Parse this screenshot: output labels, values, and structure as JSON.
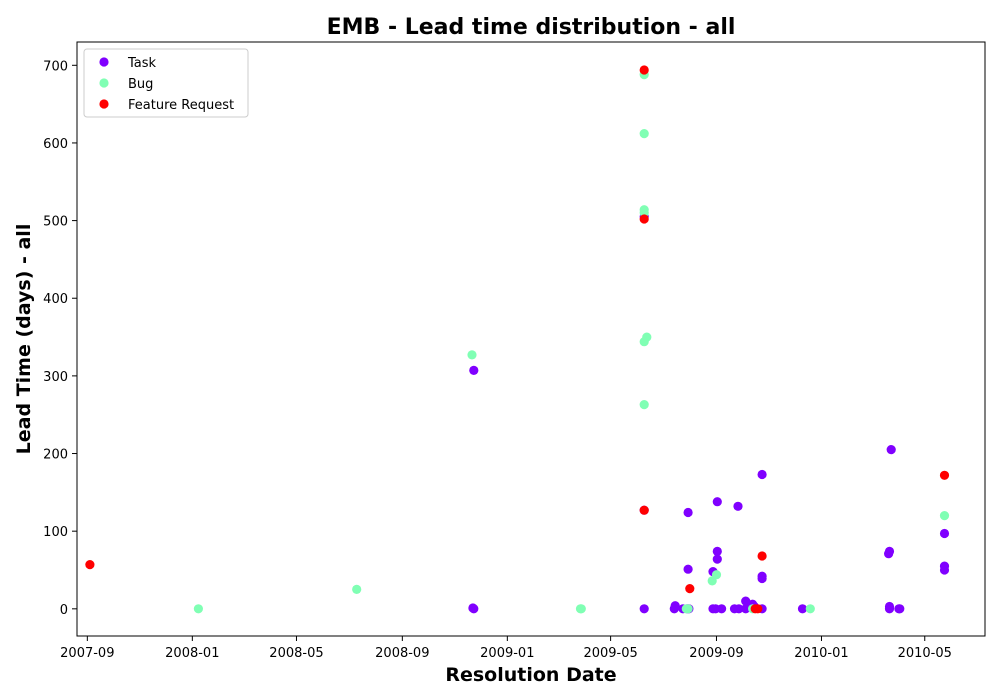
{
  "chart_data": {
    "type": "scatter",
    "title": "EMB - Lead time distribution - all",
    "xlabel": "Resolution Date",
    "ylabel": "Lead Time (days) - all",
    "x_ticks": [
      "2007-09",
      "2008-01",
      "2008-05",
      "2008-09",
      "2009-01",
      "2009-05",
      "2009-09",
      "2010-01",
      "2010-05"
    ],
    "y_ticks": [
      0,
      100,
      200,
      300,
      400,
      500,
      600,
      700
    ],
    "xlim": [
      "2007-08-20",
      "2010-07-10"
    ],
    "ylim": [
      -35,
      730
    ],
    "legend_position": "upper-left",
    "grid": false,
    "series": [
      {
        "name": "Task",
        "color": "#8000ff",
        "points": [
          [
            "2008-11-23",
            307
          ],
          [
            "2008-11-22",
            1
          ],
          [
            "2008-11-23",
            0
          ],
          [
            "2009-06-09",
            505
          ],
          [
            "2009-06-09",
            127
          ],
          [
            "2009-06-09",
            0
          ],
          [
            "2009-07-14",
            0
          ],
          [
            "2009-07-15",
            4
          ],
          [
            "2009-07-24",
            0
          ],
          [
            "2009-07-29",
            0
          ],
          [
            "2009-07-30",
            124
          ],
          [
            "2009-07-30",
            51
          ],
          [
            "2009-07-31",
            0
          ],
          [
            "2009-08-28",
            48
          ],
          [
            "2009-08-28",
            0
          ],
          [
            "2009-08-31",
            0
          ],
          [
            "2009-09-02",
            138
          ],
          [
            "2009-09-02",
            74
          ],
          [
            "2009-09-02",
            64
          ],
          [
            "2009-09-07",
            0
          ],
          [
            "2009-09-22",
            0
          ],
          [
            "2009-09-26",
            132
          ],
          [
            "2009-09-27",
            0
          ],
          [
            "2009-10-05",
            10
          ],
          [
            "2009-10-05",
            0
          ],
          [
            "2009-10-13",
            6
          ],
          [
            "2009-10-15",
            3
          ],
          [
            "2009-10-24",
            173
          ],
          [
            "2009-10-24",
            42
          ],
          [
            "2009-10-24",
            39
          ],
          [
            "2009-10-24",
            0
          ],
          [
            "2009-12-10",
            0
          ],
          [
            "2010-03-20",
            71
          ],
          [
            "2010-03-21",
            74
          ],
          [
            "2010-03-21",
            3
          ],
          [
            "2010-03-21",
            0
          ],
          [
            "2010-03-23",
            205
          ],
          [
            "2010-04-01",
            0
          ],
          [
            "2010-04-02",
            0
          ],
          [
            "2010-05-24",
            97
          ],
          [
            "2010-05-24",
            55
          ],
          [
            "2010-05-24",
            50
          ]
        ]
      },
      {
        "name": "Bug",
        "color": "#80ffb4",
        "points": [
          [
            "2008-01-08",
            0
          ],
          [
            "2008-07-10",
            25
          ],
          [
            "2008-11-21",
            327
          ],
          [
            "2009-03-27",
            0
          ],
          [
            "2009-03-28",
            0
          ],
          [
            "2009-06-09",
            688
          ],
          [
            "2009-06-09",
            612
          ],
          [
            "2009-06-09",
            514
          ],
          [
            "2009-06-09",
            510
          ],
          [
            "2009-06-09",
            344
          ],
          [
            "2009-06-12",
            350
          ],
          [
            "2009-06-09",
            263
          ],
          [
            "2009-07-28",
            0
          ],
          [
            "2009-07-30",
            0
          ],
          [
            "2009-08-27",
            36
          ],
          [
            "2009-09-01",
            44
          ],
          [
            "2009-10-13",
            0
          ],
          [
            "2009-12-19",
            0
          ],
          [
            "2010-05-24",
            120
          ]
        ]
      },
      {
        "name": "Feature Request",
        "color": "#ff0000",
        "points": [
          [
            "2007-09-04",
            57
          ],
          [
            "2009-06-09",
            694
          ],
          [
            "2009-06-09",
            502
          ],
          [
            "2009-06-09",
            127
          ],
          [
            "2009-08-01",
            26
          ],
          [
            "2009-10-16",
            0
          ],
          [
            "2009-10-19",
            0
          ],
          [
            "2009-10-24",
            68
          ],
          [
            "2010-05-24",
            172
          ]
        ]
      }
    ]
  }
}
